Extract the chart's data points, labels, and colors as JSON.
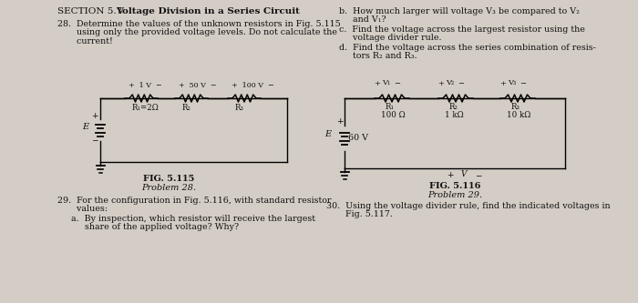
{
  "bg_color": "#d4cdc5",
  "text_color": "#111111",
  "fig_width": 7.0,
  "fig_height": 3.33,
  "dpi": 100,
  "title_normal": "SECTION 5.7",
  "title_bold": "Voltage Division in a Series Circuit",
  "q28_lines": [
    "28.  Determine the values of the unknown resistors in Fig. 5.115",
    "       using only the provided voltage levels. Do not calculate the",
    "       current!"
  ],
  "fig115_label": "FIG. 5.115",
  "fig115_prob": "Problem 28.",
  "q29_lines": [
    "29.  For the configuration in Fig. 5.116, with standard resistor",
    "       values:"
  ],
  "q29a_lines": [
    "a.  By inspection, which resistor will receive the largest",
    "     share of the applied voltage? Why?"
  ],
  "q29b_lines": [
    "b.  How much larger will voltage V₃ be compared to V₂",
    "     and V₁?"
  ],
  "q29c_lines": [
    "c.  Find the voltage across the largest resistor using the",
    "     voltage divider rule."
  ],
  "q29d_lines": [
    "d.  Find the voltage across the series combination of resis-",
    "     tors R₂ and R₃."
  ],
  "fig116_label": "FIG. 5.116",
  "fig116_prob": "Problem 29.",
  "q30_lines": [
    "30.  Using the voltage divider rule, find the indicated voltages in",
    "       Fig. 5.117."
  ]
}
